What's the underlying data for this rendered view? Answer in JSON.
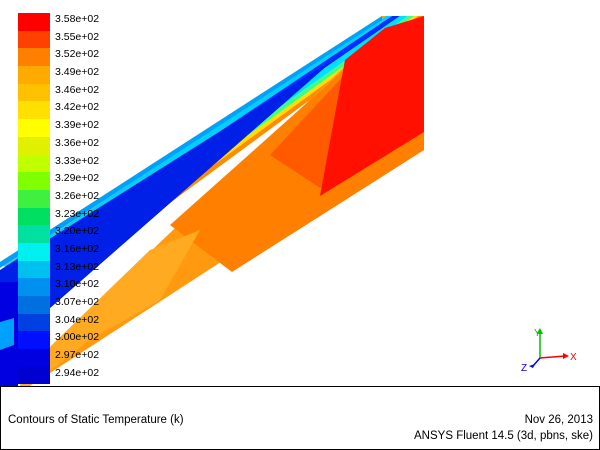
{
  "legend": {
    "colors": [
      "#ff0000",
      "#ff4000",
      "#ff8000",
      "#ffaa00",
      "#ffc000",
      "#ffe000",
      "#ffff00",
      "#e0f000",
      "#c0ff00",
      "#80ff00",
      "#40f040",
      "#00e060",
      "#00e0a0",
      "#00f0f0",
      "#00c0f0",
      "#0090f0",
      "#0070e0",
      "#0040e0",
      "#0010ff",
      "#0000e0",
      "#0000d0"
    ],
    "labels": [
      "3.58e+02",
      "3.55e+02",
      "3.52e+02",
      "3.49e+02",
      "3.46e+02",
      "3.42e+02",
      "3.39e+02",
      "3.36e+02",
      "3.33e+02",
      "3.29e+02",
      "3.26e+02",
      "3.23e+02",
      "3.20e+02",
      "3.16e+02",
      "3.13e+02",
      "3.10e+02",
      "3.07e+02",
      "3.04e+02",
      "3.00e+02",
      "2.97e+02",
      "2.94e+02"
    ]
  },
  "axes": {
    "x_label": "X",
    "y_label": "Y",
    "z_label": "Z",
    "x_color": "#ff0000",
    "y_color": "#00c000",
    "z_color": "#0000ff"
  },
  "caption": {
    "title": "Contours of Static Temperature (k)",
    "date": "Nov 26, 2013",
    "software": "ANSYS Fluent 14.5 (3d, pbns, ske)"
  }
}
